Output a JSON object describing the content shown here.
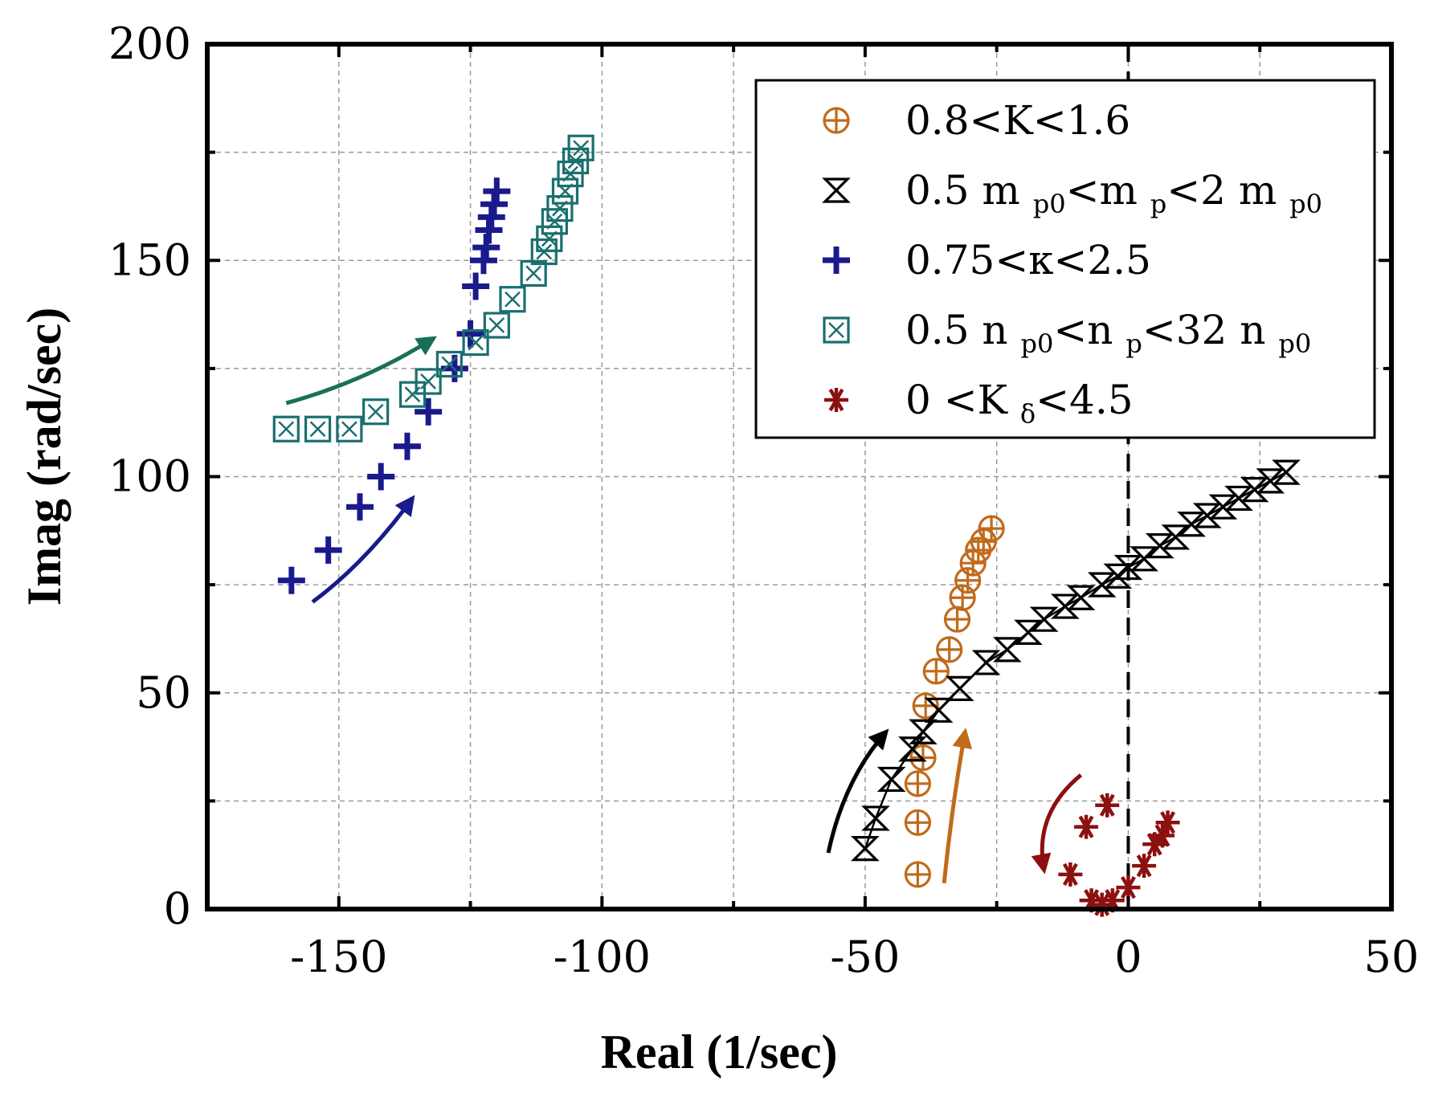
{
  "chart_data": {
    "type": "scatter",
    "title": "",
    "xlabel": "Real (1/sec)",
    "ylabel": "Imag (rad/sec)",
    "xlim": [
      -175,
      50
    ],
    "ylim": [
      0,
      200
    ],
    "xticks": [
      -150,
      -100,
      -50,
      0,
      50
    ],
    "yticks": [
      0,
      50,
      100,
      150,
      200
    ],
    "xtick_labels": [
      "-150",
      "-100",
      "-50",
      "0",
      "50"
    ],
    "ytick_labels": [
      "0",
      "50",
      "100",
      "150",
      "200"
    ],
    "grid": true,
    "legend_position": "top-right",
    "reference_line": {
      "x": 0,
      "style": "dashed",
      "color": "#000000"
    },
    "series": [
      {
        "name": "0.8<K<1.6",
        "label_parts": [
          {
            "t": "0.8<K<1.6",
            "sub": false
          }
        ],
        "marker": "circle-plus",
        "color": "#c06a1a",
        "x": [
          -40.0,
          -40.0,
          -40.0,
          -39.0,
          -38.5,
          -36.5,
          -34.0,
          -32.5,
          -31.5,
          -30.5,
          -29.5,
          -28.5,
          -27.5,
          -26.0
        ],
        "y": [
          8,
          20,
          29,
          35,
          47,
          55,
          60,
          67,
          72,
          76,
          80,
          83,
          85,
          88
        ]
      },
      {
        "name": "0.5 m p0<m p<2 m p0",
        "label_parts": [
          {
            "t": "0.5 m ",
            "sub": false
          },
          {
            "t": "p0",
            "sub": true
          },
          {
            "t": "<m ",
            "sub": false
          },
          {
            "t": "p",
            "sub": true
          },
          {
            "t": "<2 m ",
            "sub": false
          },
          {
            "t": "p0",
            "sub": true
          }
        ],
        "marker": "hourglass",
        "color": "#000000",
        "x": [
          -50,
          -48,
          -45,
          -41,
          -39,
          -36,
          -32,
          -27,
          -23,
          -19,
          -16,
          -12,
          -9,
          -5,
          -2,
          0,
          3,
          6,
          9,
          12,
          15,
          18,
          21,
          24,
          27,
          30
        ],
        "y": [
          14,
          21,
          30,
          37,
          41,
          46,
          51,
          57,
          60,
          64,
          67,
          70,
          72,
          75,
          77,
          79,
          81,
          84,
          86,
          89,
          91,
          93,
          95,
          97,
          99,
          101
        ]
      },
      {
        "name": "0.75<κ<2.5",
        "label_parts": [
          {
            "t": "0.75<κ<2.5",
            "sub": false
          }
        ],
        "marker": "plus",
        "color": "#1a1a8c",
        "x": [
          -159,
          -152,
          -146,
          -142,
          -137,
          -133,
          -128,
          -125,
          -124,
          -122.5,
          -122,
          -121.5,
          -121,
          -120.5,
          -120
        ],
        "y": [
          76,
          83,
          93,
          100,
          107,
          115,
          125,
          133,
          144,
          150,
          153,
          157,
          160,
          163,
          166
        ]
      },
      {
        "name": "0.5 n p0<n p<32 n p0",
        "label_parts": [
          {
            "t": "0.5 n ",
            "sub": false
          },
          {
            "t": "p0",
            "sub": true
          },
          {
            "t": "<n ",
            "sub": false
          },
          {
            "t": "p",
            "sub": true
          },
          {
            "t": "<32 n ",
            "sub": false
          },
          {
            "t": "p0",
            "sub": true
          }
        ],
        "marker": "square-x",
        "color": "#1a6f6f",
        "x": [
          -160,
          -154,
          -148,
          -143,
          -136,
          -133,
          -129,
          -124,
          -120,
          -117,
          -113,
          -111,
          -110,
          -109,
          -108,
          -107,
          -106,
          -105,
          -104
        ],
        "y": [
          111,
          111,
          111,
          115,
          119,
          122,
          126,
          131,
          135,
          141,
          147,
          152,
          155,
          159,
          162,
          166,
          170,
          173,
          176
        ]
      },
      {
        "name": "0 <K δ<4.5",
        "label_parts": [
          {
            "t": "0 <K ",
            "sub": false
          },
          {
            "t": "δ",
            "sub": true
          },
          {
            "t": "<4.5",
            "sub": false
          }
        ],
        "marker": "asterisk",
        "color": "#8c1010",
        "x": [
          -11,
          -8,
          -4,
          -7,
          -5,
          -3,
          0,
          3,
          5,
          6.5,
          7.5
        ],
        "y": [
          8,
          19,
          24,
          2,
          1,
          2,
          5,
          10,
          15,
          17,
          20
        ]
      }
    ],
    "arrows": [
      {
        "color": "#1a6f5a",
        "from": [
          -160,
          117
        ],
        "control": [
          -145,
          122
        ],
        "to": [
          -132,
          132
        ]
      },
      {
        "color": "#1a1a8c",
        "from": [
          -155,
          71
        ],
        "control": [
          -145,
          80
        ],
        "to": [
          -136,
          95
        ]
      },
      {
        "color": "#000000",
        "from": [
          -57,
          13
        ],
        "control": [
          -54,
          30
        ],
        "to": [
          -46,
          41
        ]
      },
      {
        "color": "#c06a1a",
        "from": [
          -35,
          6
        ],
        "control": [
          -33.5,
          24
        ],
        "to": [
          -31,
          41
        ]
      },
      {
        "color": "#8c1010",
        "from": [
          -9,
          31
        ],
        "control": [
          -18,
          22
        ],
        "to": [
          -16,
          9
        ]
      }
    ]
  }
}
